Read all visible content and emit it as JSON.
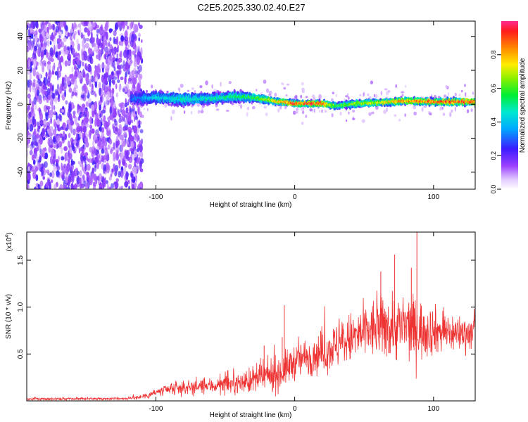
{
  "title": "C2E5.2025.330.02.40.E27",
  "colors": {
    "snr_line": "#ee3333",
    "axis": "#000000"
  },
  "chart_data": [
    {
      "type": "heatmap",
      "name": "spectrogram",
      "xlabel": "Height of straight line (km)",
      "ylabel": "Frequency (Hz)",
      "xlim": [
        -193,
        130
      ],
      "ylim": [
        -50,
        49
      ],
      "xticks": [
        -100,
        0,
        100
      ],
      "xtick_labels": [
        "-100",
        "0",
        "100"
      ],
      "yticks": [
        40,
        20,
        0,
        -20,
        -40
      ],
      "ytick_labels": [
        "40",
        "20",
        "0",
        "-20",
        "-40"
      ],
      "noise_region_x": [
        -193,
        -118
      ],
      "colorbar": {
        "label": "Normalized spectral amplitude",
        "range": [
          0,
          1
        ],
        "ticks": [
          0.0,
          0.2,
          0.4,
          0.6,
          0.8
        ],
        "tick_labels": [
          "0.0",
          "0.2",
          "0.4",
          "0.6",
          "0.8"
        ]
      },
      "signal_trace": {
        "x": [
          -118,
          -100,
          -80,
          -60,
          -45,
          -30,
          -15,
          0,
          20,
          30,
          45,
          60,
          80,
          100,
          130
        ],
        "center": [
          3.5,
          4.0,
          3.0,
          3.5,
          4.5,
          4.0,
          2.0,
          0.5,
          0.5,
          -1.0,
          0.5,
          1.0,
          2.0,
          1.5,
          1.5
        ],
        "halfwidth": [
          7,
          6,
          6,
          5,
          5,
          4,
          3,
          2.5,
          2.5,
          3,
          3,
          3,
          3,
          3,
          3
        ],
        "peak_amp": [
          0.3,
          0.45,
          0.5,
          0.5,
          0.55,
          0.6,
          0.75,
          0.95,
          0.95,
          0.6,
          0.7,
          0.75,
          0.85,
          0.9,
          0.95
        ]
      }
    },
    {
      "type": "line",
      "name": "snr",
      "xlabel": "Height of straight line (km)",
      "ylabel": "SNR (10 * v/v)",
      "exponent_label": "(x10",
      "exponent_power": "4",
      "exponent_close": ")",
      "xlim": [
        -193,
        130
      ],
      "ylim": [
        0,
        18000
      ],
      "xticks": [
        -100,
        0,
        100
      ],
      "xtick_labels": [
        "-100",
        "0",
        "100"
      ],
      "yticks": [
        5000,
        10000,
        15000
      ],
      "ytick_labels": [
        "0.5",
        "1.0",
        "1.5"
      ],
      "envelope": {
        "x": [
          -193,
          -120,
          -110,
          -100,
          -80,
          -60,
          -40,
          -30,
          -20,
          -10,
          0,
          20,
          40,
          60,
          70,
          80,
          90,
          100,
          115,
          130
        ],
        "mean": [
          200,
          250,
          450,
          900,
          1400,
          1600,
          1900,
          2200,
          2600,
          3000,
          4200,
          5200,
          6600,
          7800,
          7900,
          7800,
          7600,
          7500,
          7200,
          7300
        ],
        "spread": [
          150,
          150,
          300,
          600,
          900,
          1000,
          1200,
          1700,
          2000,
          2200,
          2200,
          2600,
          3200,
          3800,
          4200,
          4200,
          3800,
          3000,
          2400,
          2000
        ]
      },
      "spikes": [
        {
          "x": -7.5,
          "y": 10200
        },
        {
          "x": 72,
          "y": 15600
        },
        {
          "x": 88,
          "y": 18000
        },
        {
          "x": 84,
          "y": 14200
        },
        {
          "x": 62,
          "y": 13800
        },
        {
          "x": -22,
          "y": 5900
        },
        {
          "x": -9,
          "y": 6800
        }
      ]
    }
  ]
}
